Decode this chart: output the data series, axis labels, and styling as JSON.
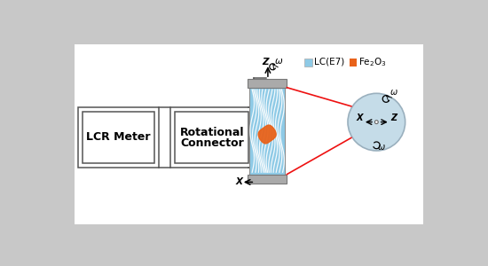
{
  "bg_color": "#c8c8c8",
  "panel_color": "#ffffff",
  "lc_color": "#8ecae6",
  "fe2o3_color": "#e8621a",
  "red_line_color": "#ee1111",
  "arrow_color": "#222222",
  "box_color": "#555555",
  "cylinder_gray": "#aaaaaa",
  "disk_color": "#c5dce8",
  "disk_edge": "#9ab0be",
  "lcr_text": "LCR Meter",
  "rot_text1": "Rotational",
  "rot_text2": "Connector",
  "legend_lc": "LC(E7)",
  "legend_fe": "Fe₂O₃",
  "omega": "ω",
  "figsize": [
    5.5,
    3.0
  ],
  "dpi": 100
}
